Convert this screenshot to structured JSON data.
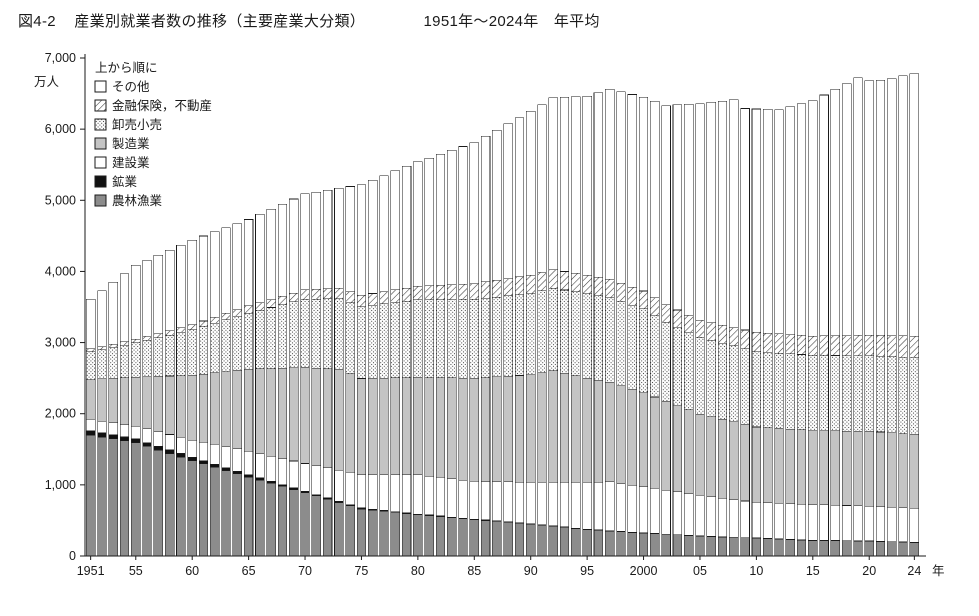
{
  "header": {
    "fig_label": "図4-2",
    "title": "産業別就業者数の推移（主要産業大分類）",
    "period": "1951年～2024年　年平均"
  },
  "chart_data": {
    "type": "bar",
    "stacked": true,
    "title": "図4-2 産業別就業者数の推移（主要産業大分類） 1951年～2024年 年平均",
    "ylabel": "万人",
    "unit": "万人",
    "ylim": [
      0,
      7000
    ],
    "ytick_interval": 1000,
    "ytick_labels": [
      "0",
      "1,000",
      "2,000",
      "3,000",
      "4,000",
      "5,000",
      "6,000",
      "7,000"
    ],
    "grid": false,
    "legend_position": "top-left-inside",
    "legend_heading": "上から順に",
    "x_suffix": "年",
    "xtick_years": [
      1951,
      1955,
      1960,
      1965,
      1970,
      1975,
      1980,
      1985,
      1990,
      1995,
      2000,
      2005,
      2010,
      2015,
      2020,
      2024
    ],
    "xtick_labels": [
      "1951",
      "55",
      "60",
      "65",
      "70",
      "75",
      "80",
      "85",
      "90",
      "95",
      "2000",
      "05",
      "10",
      "15",
      "20",
      "24"
    ],
    "years": [
      1951,
      1952,
      1953,
      1954,
      1955,
      1956,
      1957,
      1958,
      1959,
      1960,
      1961,
      1962,
      1963,
      1964,
      1965,
      1966,
      1967,
      1968,
      1969,
      1970,
      1971,
      1972,
      1973,
      1974,
      1975,
      1976,
      1977,
      1978,
      1979,
      1980,
      1981,
      1982,
      1983,
      1984,
      1985,
      1986,
      1987,
      1988,
      1989,
      1990,
      1991,
      1992,
      1993,
      1994,
      1995,
      1996,
      1997,
      1998,
      1999,
      2000,
      2001,
      2002,
      2003,
      2004,
      2005,
      2006,
      2007,
      2008,
      2009,
      2010,
      2011,
      2012,
      2013,
      2014,
      2015,
      2016,
      2017,
      2018,
      2019,
      2020,
      2021,
      2022,
      2023,
      2024
    ],
    "series": [
      {
        "name": "農林漁業",
        "pattern": "solid",
        "color": "#8c8c8c",
        "values": [
          1700,
          1672,
          1645,
          1617,
          1590,
          1540,
          1490,
          1440,
          1390,
          1340,
          1294,
          1248,
          1202,
          1156,
          1110,
          1066,
          1022,
          978,
          934,
          890,
          844,
          798,
          752,
          706,
          660,
          644,
          628,
          612,
          596,
          580,
          566,
          552,
          538,
          524,
          510,
          498,
          486,
          474,
          462,
          450,
          434,
          418,
          402,
          386,
          370,
          360,
          350,
          340,
          330,
          320,
          312,
          304,
          296,
          288,
          280,
          274,
          268,
          262,
          256,
          250,
          244,
          238,
          232,
          226,
          220,
          218,
          216,
          214,
          212,
          210,
          205,
          200,
          195,
          190
        ]
      },
      {
        "name": "鉱業",
        "pattern": "solid",
        "color": "#111111",
        "values": [
          60,
          59,
          58,
          56,
          55,
          54,
          53,
          52,
          51,
          50,
          47,
          44,
          41,
          38,
          35,
          32,
          29,
          26,
          23,
          20,
          19,
          18,
          17,
          16,
          15,
          14,
          13,
          12,
          11,
          10,
          10,
          10,
          9,
          9,
          9,
          8,
          8,
          7,
          7,
          6,
          6,
          6,
          6,
          6,
          6,
          6,
          6,
          5,
          5,
          5,
          5,
          4,
          4,
          3,
          3,
          3,
          3,
          3,
          3,
          3,
          3,
          3,
          3,
          2,
          2,
          2,
          2,
          2,
          2,
          2,
          2,
          2,
          2,
          2
        ]
      },
      {
        "name": "建設業",
        "pattern": "solid",
        "color": "#ffffff",
        "values": [
          160,
          165,
          170,
          175,
          180,
          192,
          204,
          216,
          228,
          240,
          258,
          276,
          294,
          312,
          330,
          342,
          354,
          366,
          378,
          390,
          406,
          422,
          438,
          454,
          470,
          486,
          502,
          518,
          534,
          550,
          546,
          542,
          538,
          534,
          530,
          540,
          550,
          560,
          570,
          580,
          596,
          612,
          628,
          644,
          660,
          672,
          685,
          673,
          662,
          650,
          634,
          618,
          602,
          586,
          570,
          556,
          542,
          528,
          514,
          500,
          500,
          500,
          500,
          500,
          500,
          498,
          496,
          494,
          492,
          490,
          488,
          485,
          482,
          480
        ]
      },
      {
        "name": "製造業",
        "pattern": "solid",
        "color": "#c4c4c4",
        "values": [
          560,
          593,
          625,
          658,
          690,
          734,
          778,
          822,
          866,
          910,
          958,
          1006,
          1054,
          1102,
          1150,
          1190,
          1230,
          1270,
          1310,
          1350,
          1373,
          1397,
          1420,
          1385,
          1350,
          1354,
          1358,
          1362,
          1366,
          1370,
          1386,
          1402,
          1418,
          1434,
          1450,
          1462,
          1474,
          1486,
          1498,
          1510,
          1540,
          1570,
          1533,
          1497,
          1460,
          1432,
          1404,
          1376,
          1348,
          1320,
          1284,
          1248,
          1212,
          1176,
          1140,
          1124,
          1108,
          1092,
          1076,
          1060,
          1056,
          1052,
          1048,
          1044,
          1040,
          1042,
          1044,
          1046,
          1048,
          1050,
          1048,
          1045,
          1042,
          1040
        ]
      },
      {
        "name": "卸売小売",
        "pattern": "dots",
        "color": "#ffffff",
        "values": [
          390,
          412,
          435,
          458,
          480,
          512,
          544,
          576,
          608,
          640,
          670,
          700,
          730,
          760,
          790,
          824,
          858,
          892,
          926,
          960,
          970,
          980,
          990,
          1000,
          1010,
          1026,
          1042,
          1058,
          1074,
          1090,
          1094,
          1098,
          1102,
          1106,
          1110,
          1116,
          1122,
          1128,
          1134,
          1140,
          1150,
          1160,
          1170,
          1180,
          1190,
          1188,
          1186,
          1184,
          1182,
          1180,
          1145,
          1110,
          1100,
          1090,
          1080,
          1076,
          1072,
          1068,
          1064,
          1060,
          1060,
          1060,
          1060,
          1060,
          1060,
          1060,
          1060,
          1060,
          1060,
          1060,
          1065,
          1070,
          1075,
          1080
        ]
      },
      {
        "name": "金融保険，不動産",
        "pattern": "hatch",
        "color": "#ffffff",
        "values": [
          40,
          42,
          45,
          48,
          50,
          54,
          58,
          62,
          66,
          70,
          76,
          82,
          88,
          94,
          100,
          106,
          112,
          118,
          124,
          130,
          136,
          142,
          148,
          154,
          160,
          166,
          172,
          178,
          184,
          190,
          196,
          202,
          208,
          214,
          220,
          228,
          236,
          244,
          252,
          260,
          260,
          260,
          260,
          260,
          260,
          258,
          256,
          254,
          252,
          250,
          248,
          246,
          244,
          242,
          240,
          246,
          252,
          258,
          264,
          270,
          270,
          270,
          270,
          270,
          270,
          274,
          278,
          282,
          286,
          290,
          292,
          295,
          298,
          300
        ]
      },
      {
        "name": "その他",
        "pattern": "solid",
        "color": "#ffffff",
        "values": [
          700,
          787,
          872,
          958,
          1045,
          1074,
          1103,
          1132,
          1161,
          1190,
          1195,
          1200,
          1205,
          1210,
          1215,
          1242,
          1269,
          1296,
          1323,
          1350,
          1368,
          1385,
          1403,
          1479,
          1555,
          1594,
          1633,
          1672,
          1711,
          1750,
          1796,
          1842,
          1889,
          1935,
          1981,
          2046,
          2110,
          2175,
          2239,
          2304,
          2359,
          2414,
          2448,
          2480,
          2514,
          2594,
          2673,
          2691,
          2708,
          2725,
          2762,
          2800,
          2882,
          2965,
          3047,
          3098,
          3148,
          3199,
          3113,
          3140,
          3144,
          3147,
          3200,
          3255,
          3308,
          3386,
          3464,
          3542,
          3620,
          3578,
          3590,
          3613,
          3656,
          3688
        ]
      }
    ]
  }
}
